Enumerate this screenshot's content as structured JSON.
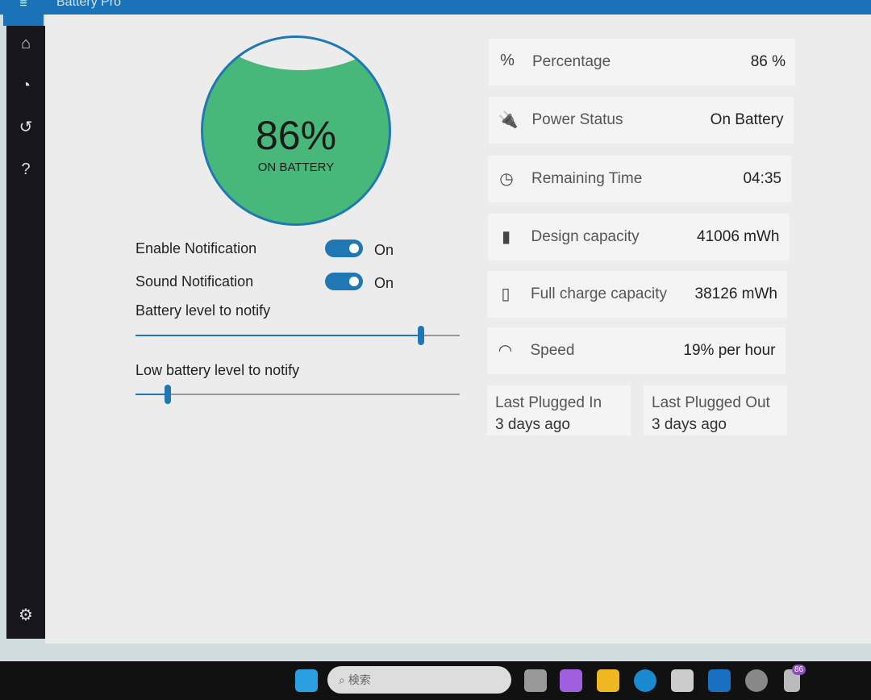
{
  "app": {
    "title": "Battery Pro",
    "menu_icon": "hamburger-icon"
  },
  "sidebar": {
    "items": [
      {
        "icon": "home-icon",
        "glyph": "⌂"
      },
      {
        "icon": "pie-chart-icon",
        "glyph": "◔"
      },
      {
        "icon": "history-icon",
        "glyph": "↺"
      },
      {
        "icon": "help-icon",
        "glyph": "?"
      }
    ],
    "settings_icon": "⚙"
  },
  "gauge": {
    "percent_label": "86%",
    "state": "ON BATTERY",
    "level": 86,
    "fill_color": "#48b87a"
  },
  "settings": {
    "enable_notification": {
      "label": "Enable Notification",
      "state": "On",
      "on": true
    },
    "sound_notification": {
      "label": "Sound Notification",
      "state": "On",
      "on": true
    },
    "battery_level": {
      "label": "Battery level to notify",
      "value_percent": 88
    },
    "low_battery_level": {
      "label": "Low battery level to notify",
      "value_percent": 10
    }
  },
  "stats": [
    {
      "icon": "percent-icon",
      "glyph": "%",
      "label": "Percentage",
      "value": "86 %"
    },
    {
      "icon": "plug-icon",
      "glyph": "🔌",
      "label": "Power Status",
      "value": "On Battery"
    },
    {
      "icon": "clock-icon",
      "glyph": "◷",
      "label": "Remaining Time",
      "value": "04:35"
    },
    {
      "icon": "battery-icon",
      "glyph": "▮",
      "label": "Design capacity",
      "value": "41006 mWh"
    },
    {
      "icon": "battery-full-icon",
      "glyph": "▯",
      "label": "Full charge capacity",
      "value": "38126 mWh"
    },
    {
      "icon": "speedometer-icon",
      "glyph": "◠",
      "label": "Speed",
      "value": "19% per hour"
    }
  ],
  "plugged": {
    "in_label": "Last Plugged In",
    "in_value": "3 days ago",
    "out_label": "Last Plugged Out",
    "out_value": "3 days ago"
  },
  "taskbar": {
    "search_placeholder": "検索",
    "battery_badge": "86"
  },
  "colors": {
    "accent": "#1f78b4",
    "sidebar": "#16161c"
  }
}
